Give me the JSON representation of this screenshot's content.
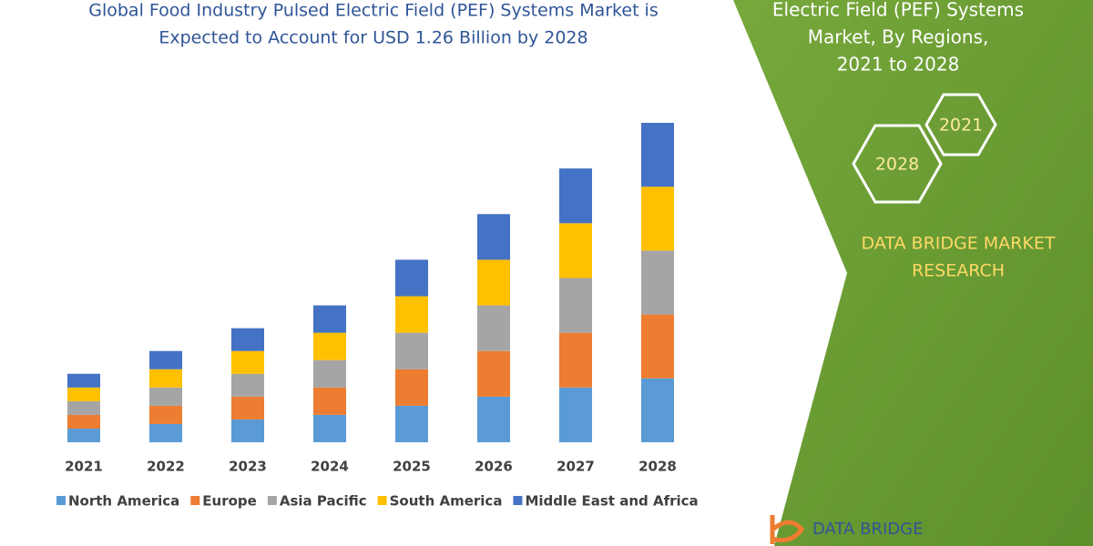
{
  "chart_data": {
    "type": "stacked-bar",
    "title": [
      "Global Food Industry Pulsed Electric Field (PEF) Systems Market is",
      "Expected to Account for USD 1.26 Billion by 2028"
    ],
    "categories": [
      "2021",
      "2022",
      "2023",
      "2024",
      "2025",
      "2026",
      "2027",
      "2028"
    ],
    "series": [
      {
        "name": "North America",
        "color": "#5b9bd5",
        "values": [
          15,
          20,
          25,
          30,
          40,
          50,
          60,
          70
        ]
      },
      {
        "name": "Europe",
        "color": "#ed7d31",
        "values": [
          15,
          20,
          25,
          30,
          40,
          50,
          60,
          70
        ]
      },
      {
        "name": "Asia Pacific",
        "color": "#a5a5a5",
        "values": [
          15,
          20,
          25,
          30,
          40,
          50,
          60,
          70
        ]
      },
      {
        "name": "South America",
        "color": "#ffc000",
        "values": [
          15,
          20,
          25,
          30,
          40,
          50,
          60,
          70
        ]
      },
      {
        "name": "Middle East and Africa",
        "color": "#4472c4",
        "values": [
          15,
          20,
          25,
          30,
          40,
          50,
          60,
          70
        ]
      }
    ]
  },
  "panel": {
    "title": [
      "Electric Field (PEF) Systems",
      "Market, By Regions,",
      "2021 to 2028"
    ],
    "hexagons": [
      "2021",
      "2028"
    ],
    "brand": [
      "DATA BRIDGE MARKET",
      "RESEARCH"
    ],
    "logo": "DATA BRIDGE"
  }
}
